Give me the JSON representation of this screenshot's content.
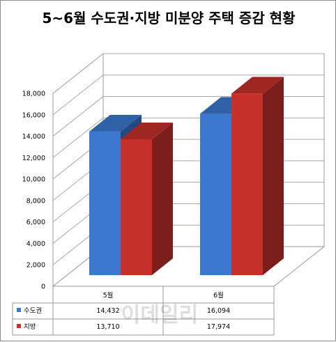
{
  "chart_data": {
    "type": "bar",
    "title": "5~6월 수도권·지방 미분양 주택 증감 현황",
    "categories": [
      "5월",
      "6월"
    ],
    "series": [
      {
        "name": "수도권",
        "values": [
          14432,
          16094
        ],
        "color": "#3c78d0"
      },
      {
        "name": "지방",
        "values": [
          13710,
          17974
        ],
        "color": "#c8302c"
      }
    ],
    "ylim": [
      0,
      18000
    ],
    "yticks": [
      0,
      2000,
      4000,
      6000,
      8000,
      10000,
      12000,
      14000,
      16000,
      18000
    ],
    "ytick_labels": [
      "0",
      "2,000",
      "4,000",
      "6,000",
      "8,000",
      "10,000",
      "12,000",
      "14,000",
      "16,000",
      "18,000"
    ],
    "data_table": {
      "rows": [
        {
          "label": "수도권",
          "cells": [
            "14,432",
            "16,094"
          ]
        },
        {
          "label": "지방",
          "cells": [
            "13,710",
            "17,974"
          ]
        }
      ]
    },
    "gridlines": true,
    "legend_placement": "data-table"
  },
  "watermark": "이데일리"
}
